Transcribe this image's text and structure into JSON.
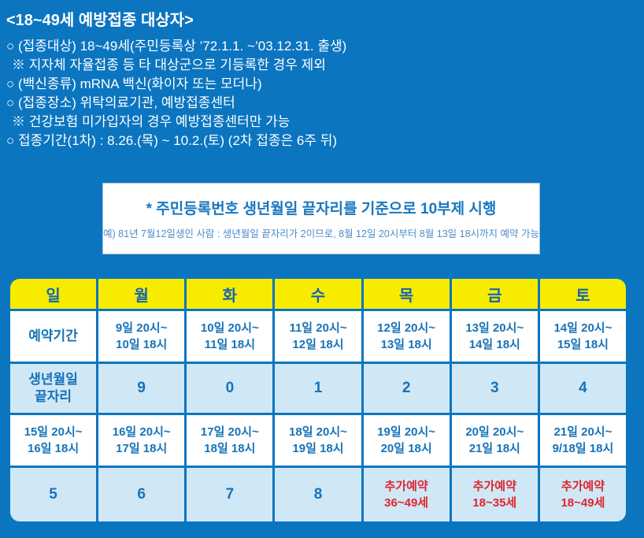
{
  "header": {
    "title": "<18~49세 예방접종 대상자>",
    "lines": [
      "○ (접종대상) 18~49세(주민등록상 ’72.1.1. ~’03.12.31. 출생)",
      "※ 지자체 자율접종 등 타 대상군으로 기등록한 경우 제외",
      "○ (백신종류) mRNA 백신(화이자 또는 모더나)",
      "○ (접종장소) 위탁의료기관, 예방접종센터",
      "※ 건강보험 미가입자의 경우 예방접종센터만 가능",
      "○ 접종기간(1차) : 8.26.(목) ~ 10.2.(토) (2차 접종은 6주 뒤)"
    ]
  },
  "notice_box": {
    "title": "* 주민등록번호 생년월일 끝자리를 기준으로 10부제 시행",
    "subtitle": "예) 81년 7월12일생인 사람 : 생년월일 끝자리가 2이므로, 8월 12일 20시부터 8월 13일 18시까지 예약 가능"
  },
  "schedule_table": {
    "days": [
      "일",
      "월",
      "화",
      "수",
      "목",
      "금",
      "토"
    ],
    "row_reservation": [
      "예약기간",
      "9일 20시~\n10일 18시",
      "10일 20시~\n11일 18시",
      "11일 20시~\n12일 18시",
      "12일 20시~\n13일 18시",
      "13일 20시~\n14일 18시",
      "14일 20시~\n15일 18시"
    ],
    "row_digits1": [
      "생년월일\n끝자리",
      "9",
      "0",
      "1",
      "2",
      "3",
      "4"
    ],
    "row_reservation2": [
      "15일 20시~\n16일 18시",
      "16일 20시~\n17일 18시",
      "17일 20시~\n18일 18시",
      "18일 20시~\n19일 18시",
      "19일 20시~\n20일 18시",
      "20일 20시~\n21일 18시",
      "21일 20시~\n9/18일 18시"
    ],
    "row_digits2": [
      "5",
      "6",
      "7",
      "8",
      "추가예약\n36~49세",
      "추가예약\n18~35세",
      "추가예약\n18~49세"
    ]
  },
  "colors": {
    "background_blue": "#0b75c0",
    "header_yellow": "#f7eb00",
    "table_text_blue": "#1673b9",
    "light_cell_blue": "#d0e7f6",
    "extra_reservation_red": "#df262c",
    "text_white": "#ffffff"
  }
}
